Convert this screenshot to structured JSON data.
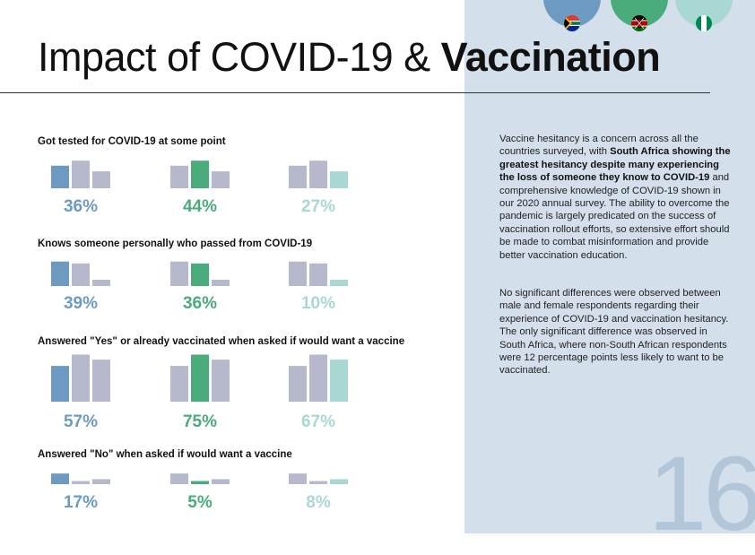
{
  "title": {
    "normal": "Impact of COVID-19 & ",
    "bold": "Vaccination"
  },
  "page_number": "16",
  "countries": [
    {
      "name": "South Africa",
      "color": "#6d9ac1",
      "flag_icon": "south-africa-flag-icon"
    },
    {
      "name": "Kenya",
      "color": "#4aab7b",
      "flag_icon": "kenya-flag-icon"
    },
    {
      "name": "Nigeria",
      "color": "#a9d8d3",
      "flag_icon": "nigeria-flag-icon"
    }
  ],
  "colors": {
    "neutral_bar": "#b6b9cc",
    "panel": "#d3dfea"
  },
  "chart_data": [
    {
      "type": "bar",
      "title": "Got tested for COVID-19 at some point",
      "categories": [
        "South Africa",
        "Kenya",
        "Nigeria"
      ],
      "values": [
        36,
        44,
        27
      ],
      "labels": [
        "36%",
        "44%",
        "27%"
      ]
    },
    {
      "type": "bar",
      "title": "Knows someone personally who passed from COVID-19",
      "categories": [
        "South Africa",
        "Kenya",
        "Nigeria"
      ],
      "values": [
        39,
        36,
        10
      ],
      "labels": [
        "39%",
        "36%",
        "10%"
      ]
    },
    {
      "type": "bar",
      "title": "Answered \"Yes\" or already vaccinated when asked if would want a vaccine",
      "categories": [
        "South Africa",
        "Kenya",
        "Nigeria"
      ],
      "values": [
        57,
        75,
        67
      ],
      "labels": [
        "57%",
        "75%",
        "67%"
      ]
    },
    {
      "type": "bar",
      "title": "Answered \"No\"  when asked if would want a vaccine",
      "categories": [
        "South Africa",
        "Kenya",
        "Nigeria"
      ],
      "values": [
        17,
        5,
        8
      ],
      "labels": [
        "17%",
        "5%",
        "8%"
      ]
    }
  ],
  "paragraphs": [
    {
      "segments": [
        {
          "text": "Vaccine hesitancy is a concern across all the countries surveyed, with ",
          "bold": false
        },
        {
          "text": "South Africa showing the greatest hesitancy despite many experiencing the loss of someone they know to COVID-19",
          "bold": true
        },
        {
          "text": " and comprehensive knowledge of COVID-19 shown in our 2020 annual survey. The ability to overcome the pandemic is largely predicated on the success of vaccination rollout efforts, so extensive effort should be made to combat misinformation and provide better vaccination education.",
          "bold": false
        }
      ]
    },
    {
      "segments": [
        {
          "text": "No significant differences were observed between male and female respondents regarding their experience of COVID-19 and vaccination hesitancy. The only significant difference was observed in South Africa, where non-South African respondents were 12 percentage points less likely to want to be vaccinated.",
          "bold": false
        }
      ]
    }
  ]
}
